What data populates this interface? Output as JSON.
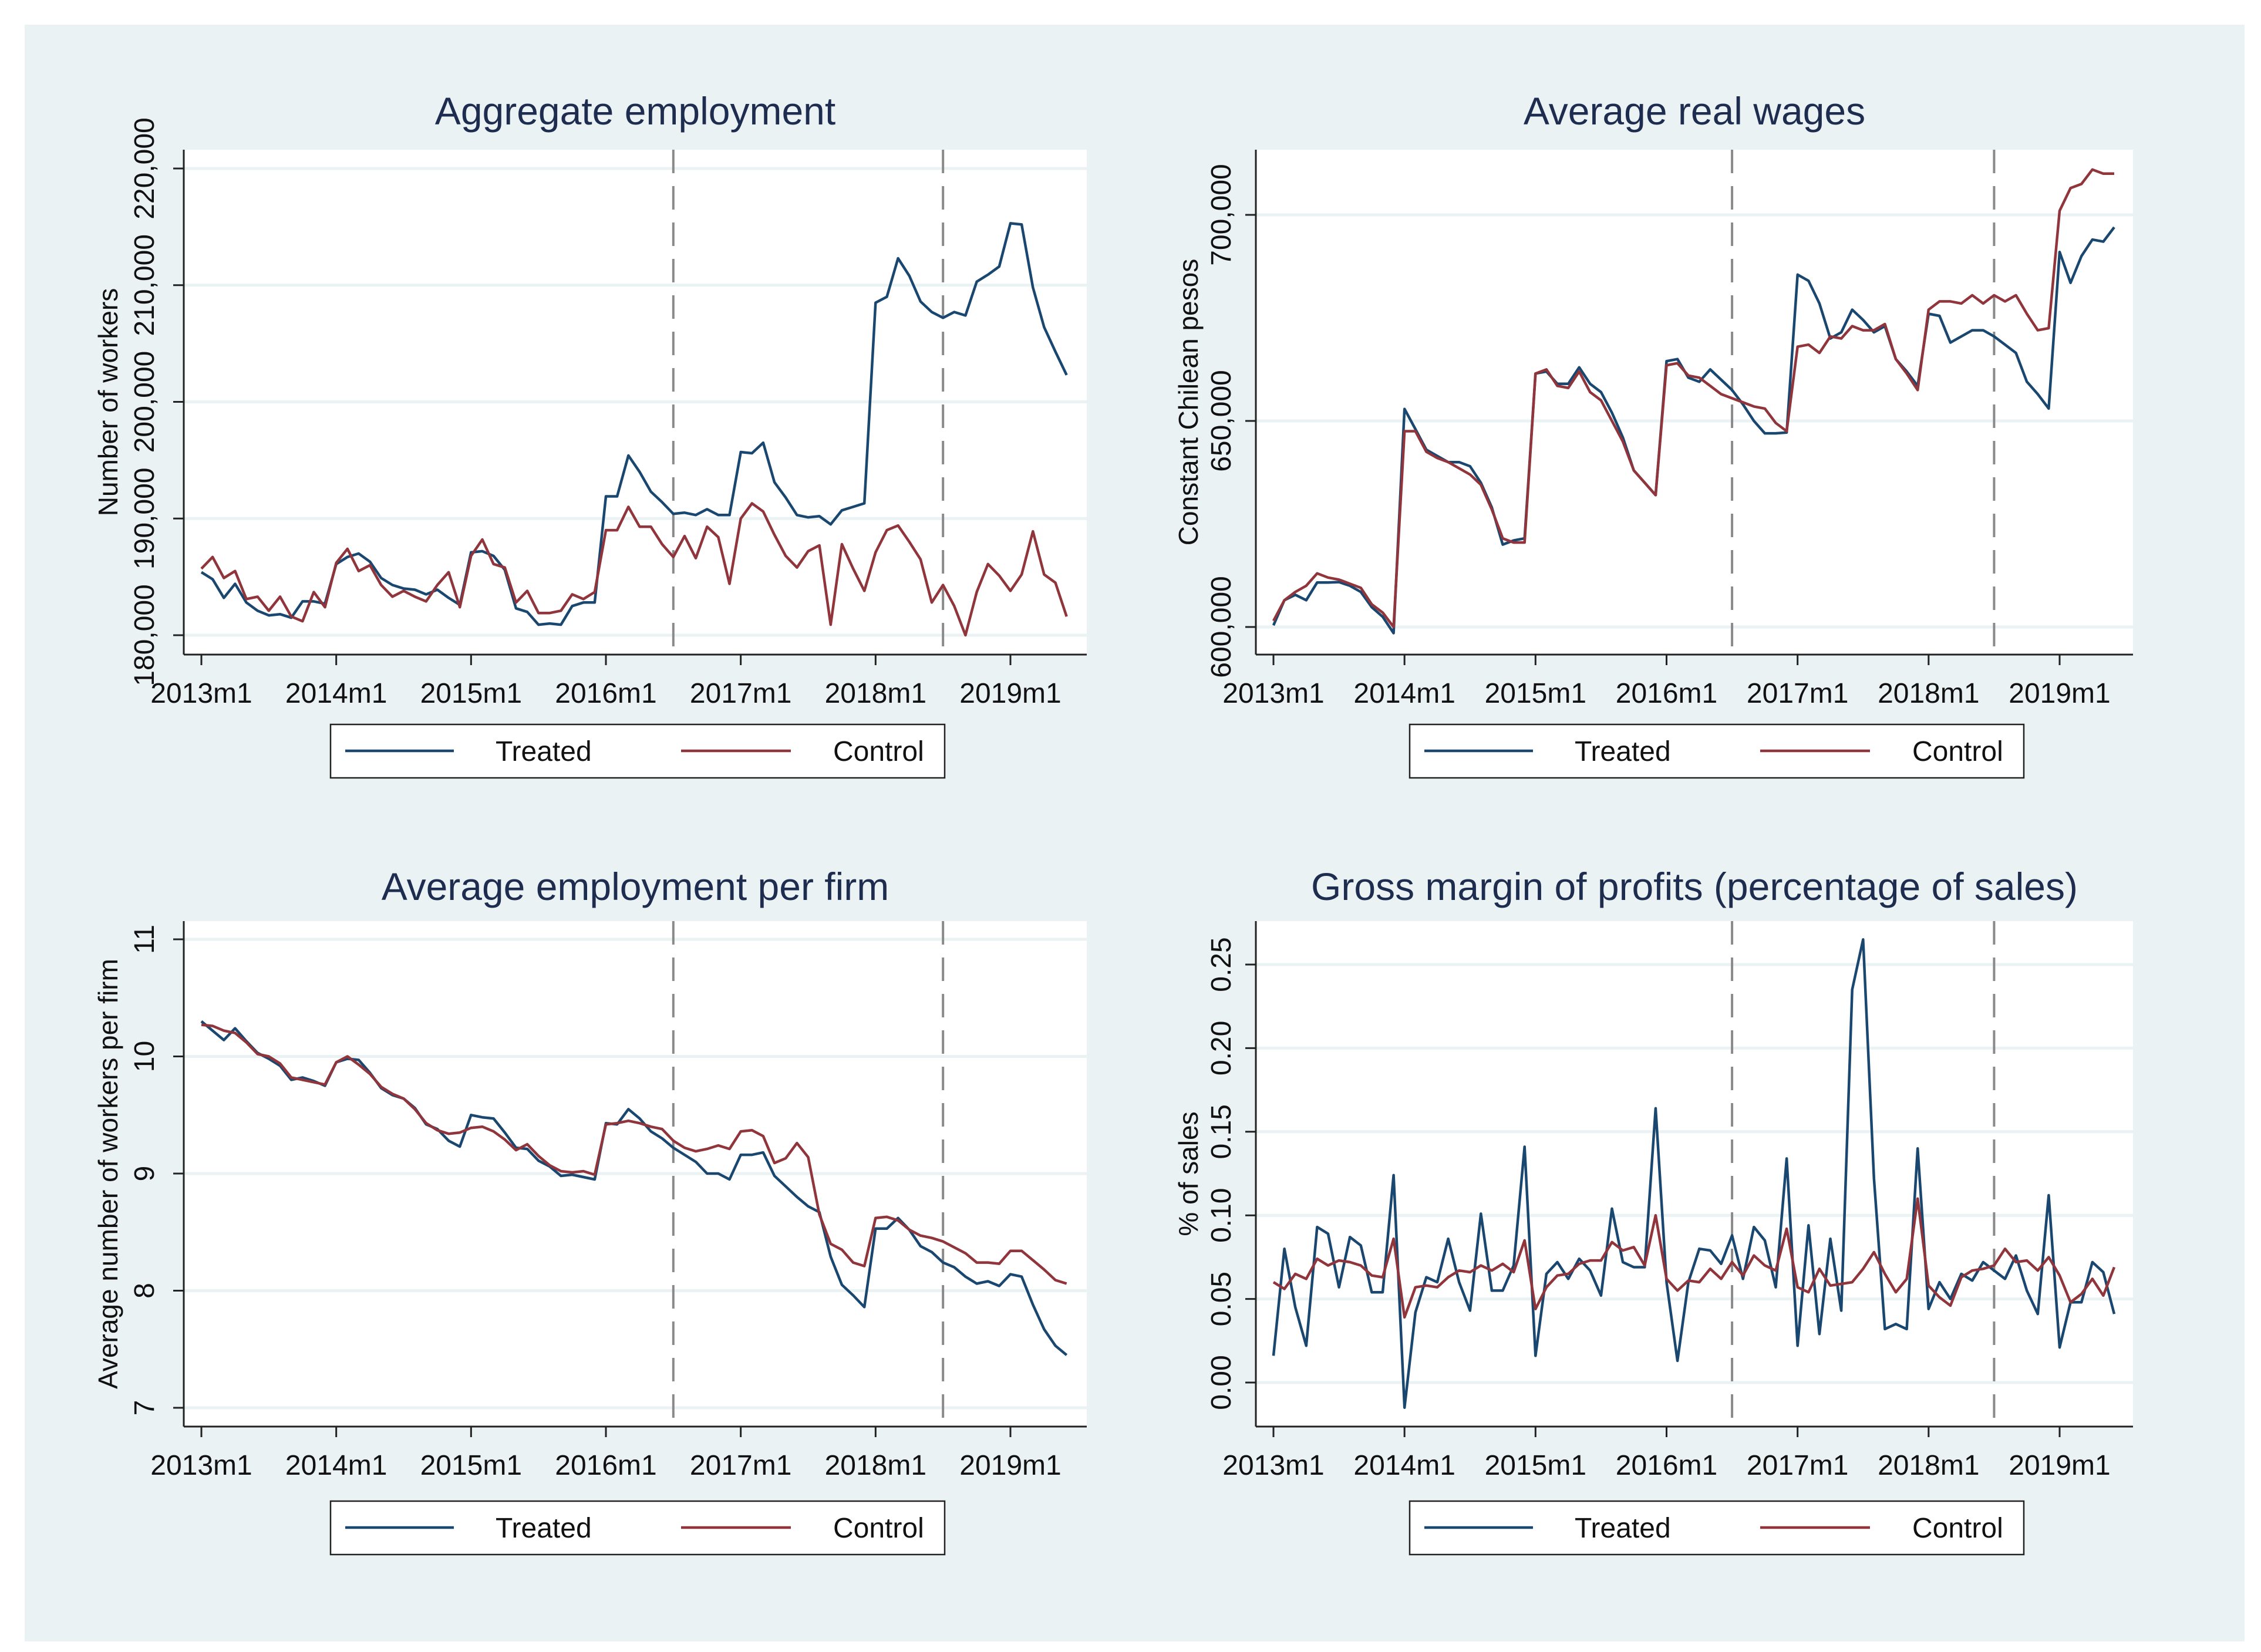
{
  "legend": {
    "treated": "Treated",
    "control": "Control"
  },
  "colors": {
    "treated": "#1a476f",
    "control": "#90353b",
    "background": "#eaf2f3",
    "reference_line": "#8a8a8a"
  },
  "chart_data": [
    {
      "type": "line",
      "title": "Aggregate employment",
      "ylabel": "Number of workers",
      "x_range": [
        "2013m1",
        "2019m6"
      ],
      "xticks": [
        "2013m1",
        "2014m1",
        "2015m1",
        "2016m1",
        "2017m1",
        "2018m1",
        "2019m1"
      ],
      "yticks": [
        180000,
        190000,
        200000,
        210000,
        220000
      ],
      "ytick_labels": [
        "180,000",
        "190,000",
        "200,000",
        "210,000",
        "220,000"
      ],
      "vlines": [
        "2016m7",
        "2018m7"
      ],
      "grid": true,
      "legend_position": "bottom",
      "series": [
        {
          "name": "Treated",
          "values": [
            185.4,
            184.8,
            183.2,
            184.4,
            182.8,
            182.1,
            181.7,
            181.8,
            181.5,
            182.9,
            182.9,
            182.7,
            186.1,
            186.7,
            187.0,
            186.3,
            184.9,
            184.3,
            184.0,
            183.9,
            183.5,
            183.9,
            183.2,
            182.6,
            187.1,
            187.2,
            186.8,
            185.6,
            182.3,
            182.0,
            180.9,
            181.0,
            180.9,
            182.5,
            182.8,
            182.8,
            191.9,
            191.9,
            195.4,
            194.0,
            192.3,
            191.4,
            190.4,
            190.5,
            190.3,
            190.8,
            190.3,
            190.3,
            195.7,
            195.6,
            196.5,
            193.1,
            191.8,
            190.3,
            190.1,
            190.2,
            189.5,
            190.7,
            191.0,
            191.3,
            208.5,
            209.0,
            212.3,
            210.8,
            208.6,
            207.7,
            207.2,
            207.7,
            207.4,
            210.3,
            210.9,
            211.6,
            215.3,
            215.2,
            209.8,
            206.4,
            204.3,
            202.3
          ],
          "unit_scale": 1000
        },
        {
          "name": "Control",
          "values": [
            185.7,
            186.7,
            184.9,
            185.5,
            183.1,
            183.3,
            182.1,
            183.3,
            181.6,
            181.2,
            183.7,
            182.4,
            186.2,
            187.4,
            185.5,
            186.0,
            184.3,
            183.3,
            183.8,
            183.3,
            182.9,
            184.3,
            185.4,
            182.4,
            186.8,
            188.2,
            186.1,
            185.8,
            182.8,
            183.8,
            181.9,
            181.9,
            182.1,
            183.5,
            183.1,
            183.7,
            189.0,
            189.0,
            191.0,
            189.3,
            189.3,
            187.8,
            186.7,
            188.5,
            186.6,
            189.3,
            188.4,
            184.4,
            190.0,
            191.3,
            190.6,
            188.6,
            186.8,
            185.8,
            187.2,
            187.7,
            180.9,
            187.8,
            185.7,
            183.8,
            187.1,
            189.0,
            189.4,
            188.0,
            186.5,
            182.8,
            184.3,
            182.5,
            180.0,
            183.7,
            186.1,
            185.1,
            183.8,
            185.2,
            188.9,
            185.2,
            184.5,
            181.6
          ],
          "unit_scale": 1000
        }
      ]
    },
    {
      "type": "line",
      "title": "Average real wages",
      "ylabel": "Constant Chilean pesos",
      "x_range": [
        "2013m1",
        "2019m6"
      ],
      "xticks": [
        "2013m1",
        "2014m1",
        "2015m1",
        "2016m1",
        "2017m1",
        "2018m1",
        "2019m1"
      ],
      "yticks": [
        600000,
        650000,
        700000
      ],
      "ytick_labels": [
        "600,000",
        "650,000",
        "700,000"
      ],
      "vlines": [
        "2016m7",
        "2018m7"
      ],
      "grid": true,
      "legend_position": "bottom",
      "series": [
        {
          "name": "Treated",
          "values": [
            600.4,
            606.5,
            607.8,
            606.5,
            610.8,
            610.8,
            610.9,
            610.0,
            608.5,
            604.8,
            602.5,
            598.5,
            652.9,
            648.0,
            643.0,
            641.5,
            640.0,
            640.0,
            639.0,
            635.0,
            629.0,
            620.0,
            621.0,
            621.5,
            661.5,
            662.0,
            659.0,
            659.0,
            663.0,
            659.0,
            657.0,
            652.0,
            646.0,
            638.0,
            635.0,
            632.0,
            664.5,
            665.0,
            660.5,
            659.5,
            662.5,
            660.0,
            657.5,
            654.0,
            650.0,
            647.0,
            647.0,
            647.2,
            685.5,
            684.0,
            678.5,
            670.0,
            671.5,
            677.0,
            674.5,
            671.5,
            673.0,
            665.0,
            662.0,
            658.5,
            676.0,
            675.5,
            669.0,
            670.5,
            672.0,
            672.0,
            670.5,
            668.5,
            666.5,
            659.5,
            656.5,
            653.0,
            691.0,
            683.5,
            690.0,
            694.0,
            693.5,
            697.0
          ],
          "unit_scale": 1000
        },
        {
          "name": "Control",
          "values": [
            601.5,
            606.5,
            608.5,
            610.0,
            613.0,
            612.0,
            611.5,
            610.5,
            609.5,
            605.5,
            603.5,
            600.0,
            647.5,
            647.5,
            642.5,
            641.0,
            640.0,
            638.5,
            637.0,
            634.5,
            628.5,
            621.5,
            620.5,
            620.5,
            661.5,
            662.5,
            658.5,
            658.0,
            662.0,
            657.0,
            655.0,
            650.0,
            645.0,
            638.0,
            635.0,
            632.0,
            663.5,
            664.0,
            661.0,
            660.5,
            658.5,
            656.5,
            655.5,
            654.5,
            653.5,
            653.0,
            649.5,
            647.5,
            668.0,
            668.5,
            666.5,
            670.5,
            670.0,
            673.0,
            672.0,
            672.0,
            673.5,
            665.0,
            661.5,
            657.5,
            677.0,
            679.0,
            679.0,
            678.5,
            680.5,
            678.5,
            680.5,
            679.0,
            680.5,
            676.0,
            672.0,
            672.5,
            701.0,
            706.5,
            707.5,
            711.0,
            710.0,
            710.0
          ],
          "unit_scale": 1000
        }
      ]
    },
    {
      "type": "line",
      "title": "Average employment per firm",
      "ylabel": "Average number of workers per firm",
      "x_range": [
        "2013m1",
        "2019m6"
      ],
      "xticks": [
        "2013m1",
        "2014m1",
        "2015m1",
        "2016m1",
        "2017m1",
        "2018m1",
        "2019m1"
      ],
      "yticks": [
        7,
        8,
        9,
        10,
        11
      ],
      "ytick_labels": [
        "7",
        "8",
        "9",
        "10",
        "11"
      ],
      "vlines": [
        "2016m7",
        "2018m7"
      ],
      "grid": true,
      "legend_position": "bottom",
      "series": [
        {
          "name": "Treated",
          "values": [
            10.3,
            10.22,
            10.14,
            10.24,
            10.13,
            10.03,
            9.98,
            9.92,
            9.8,
            9.82,
            9.79,
            9.75,
            9.95,
            9.98,
            9.97,
            9.86,
            9.73,
            9.67,
            9.64,
            9.56,
            9.42,
            9.38,
            9.28,
            9.23,
            9.5,
            9.48,
            9.47,
            9.35,
            9.22,
            9.21,
            9.11,
            9.06,
            8.98,
            8.99,
            8.97,
            8.95,
            9.43,
            9.42,
            9.55,
            9.47,
            9.36,
            9.3,
            9.22,
            9.16,
            9.1,
            9.0,
            9.0,
            8.95,
            9.16,
            9.16,
            9.18,
            8.98,
            8.89,
            8.8,
            8.72,
            8.67,
            8.29,
            8.05,
            7.96,
            7.86,
            8.53,
            8.53,
            8.62,
            8.52,
            8.38,
            8.33,
            8.24,
            8.2,
            8.12,
            8.06,
            8.08,
            8.04,
            8.14,
            8.12,
            7.88,
            7.67,
            7.53,
            7.45
          ],
          "unit_scale": 1
        },
        {
          "name": "Control",
          "values": [
            10.27,
            10.26,
            10.22,
            10.2,
            10.12,
            10.02,
            10.0,
            9.94,
            9.82,
            9.8,
            9.78,
            9.76,
            9.95,
            10.0,
            9.93,
            9.85,
            9.74,
            9.68,
            9.64,
            9.55,
            9.43,
            9.37,
            9.34,
            9.35,
            9.39,
            9.4,
            9.36,
            9.29,
            9.2,
            9.25,
            9.15,
            9.07,
            9.02,
            9.01,
            9.02,
            8.99,
            9.42,
            9.43,
            9.45,
            9.43,
            9.4,
            9.38,
            9.28,
            9.22,
            9.19,
            9.21,
            9.24,
            9.21,
            9.36,
            9.37,
            9.32,
            9.09,
            9.13,
            9.26,
            9.14,
            8.65,
            8.4,
            8.35,
            8.24,
            8.21,
            8.62,
            8.63,
            8.6,
            8.52,
            8.47,
            8.45,
            8.42,
            8.37,
            8.32,
            8.24,
            8.24,
            8.23,
            8.34,
            8.34,
            8.26,
            8.18,
            8.09,
            8.06
          ],
          "unit_scale": 1
        }
      ]
    },
    {
      "type": "line",
      "title": "Gross margin of profits (percentage of sales)",
      "ylabel": "% of sales",
      "x_range": [
        "2013m1",
        "2019m6"
      ],
      "xticks": [
        "2013m1",
        "2014m1",
        "2015m1",
        "2016m1",
        "2017m1",
        "2018m1",
        "2019m1"
      ],
      "yticks": [
        0,
        0.05,
        0.1,
        0.15,
        0.2,
        0.25
      ],
      "ytick_labels": [
        "0.00",
        "0.05",
        "0.10",
        "0.15",
        "0.20",
        "0.25"
      ],
      "vlines": [
        "2016m7",
        "2018m7"
      ],
      "grid": true,
      "legend_position": "bottom",
      "series": [
        {
          "name": "Treated",
          "values": [
            0.016,
            0.08,
            0.045,
            0.022,
            0.093,
            0.089,
            0.057,
            0.087,
            0.082,
            0.054,
            0.054,
            0.124,
            -0.015,
            0.042,
            0.063,
            0.06,
            0.086,
            0.06,
            0.043,
            0.101,
            0.055,
            0.055,
            0.07,
            0.141,
            0.016,
            0.065,
            0.072,
            0.062,
            0.074,
            0.067,
            0.052,
            0.104,
            0.072,
            0.069,
            0.069,
            0.164,
            0.06,
            0.013,
            0.06,
            0.08,
            0.079,
            0.071,
            0.088,
            0.062,
            0.093,
            0.085,
            0.057,
            0.134,
            0.022,
            0.094,
            0.029,
            0.086,
            0.043,
            0.235,
            0.265,
            0.122,
            0.032,
            0.035,
            0.032,
            0.14,
            0.044,
            0.06,
            0.05,
            0.065,
            0.061,
            0.072,
            0.067,
            0.062,
            0.076,
            0.055,
            0.041,
            0.112,
            0.021,
            0.048,
            0.048,
            0.072,
            0.066,
            0.041
          ],
          "unit_scale": 1
        },
        {
          "name": "Control",
          "values": [
            0.06,
            0.056,
            0.065,
            0.062,
            0.074,
            0.07,
            0.073,
            0.072,
            0.07,
            0.064,
            0.063,
            0.086,
            0.039,
            0.057,
            0.058,
            0.057,
            0.063,
            0.067,
            0.066,
            0.07,
            0.067,
            0.071,
            0.066,
            0.085,
            0.044,
            0.057,
            0.064,
            0.065,
            0.071,
            0.073,
            0.073,
            0.084,
            0.079,
            0.081,
            0.07,
            0.1,
            0.062,
            0.055,
            0.061,
            0.06,
            0.068,
            0.062,
            0.072,
            0.064,
            0.076,
            0.07,
            0.067,
            0.092,
            0.057,
            0.054,
            0.068,
            0.058,
            0.059,
            0.06,
            0.068,
            0.078,
            0.065,
            0.054,
            0.062,
            0.11,
            0.058,
            0.051,
            0.046,
            0.063,
            0.067,
            0.068,
            0.07,
            0.08,
            0.072,
            0.073,
            0.067,
            0.075,
            0.064,
            0.048,
            0.053,
            0.062,
            0.052,
            0.069
          ],
          "unit_scale": 1
        }
      ]
    }
  ]
}
